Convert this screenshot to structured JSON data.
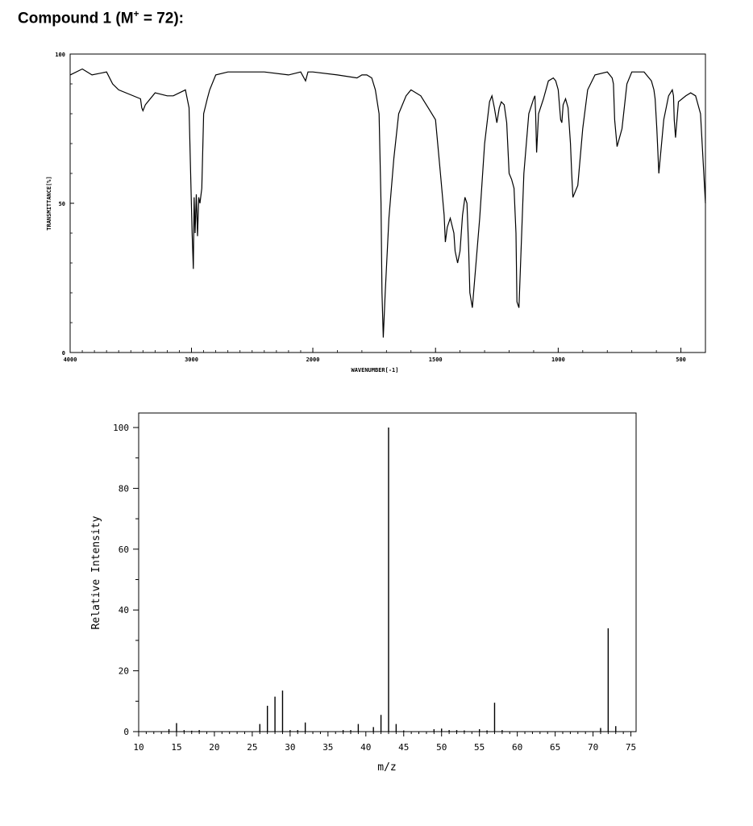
{
  "title": {
    "main": "Compound 1 (M",
    "sup": "+",
    "rest": " = 72):"
  },
  "chart_data": [
    {
      "type": "line",
      "title": "",
      "xlabel": "WAVENUMBER[-1]",
      "ylabel": "TRANSMITTANCE[%]",
      "xlim": [
        4000,
        400
      ],
      "ylim": [
        0,
        100
      ],
      "x_ticks": [
        4000,
        3000,
        2000,
        1500,
        1000,
        500
      ],
      "y_ticks": [
        0,
        50,
        100
      ],
      "grid": false,
      "series": [
        {
          "x": [
            4000,
            3900,
            3820,
            3700,
            3650,
            3600,
            3420,
            3410,
            3400,
            3380,
            3300,
            3200,
            3150,
            3050,
            3020,
            3010,
            2995,
            2985,
            2978,
            2970,
            2960,
            2950,
            2940,
            2930,
            2915,
            2900,
            2870,
            2850,
            2800,
            2700,
            2600,
            2400,
            2200,
            2100,
            2060,
            2040,
            2000,
            1900,
            1820,
            1800,
            1780,
            1760,
            1745,
            1730,
            1722,
            1718,
            1713,
            1705,
            1690,
            1670,
            1650,
            1620,
            1600,
            1560,
            1530,
            1500,
            1480,
            1465,
            1460,
            1452,
            1440,
            1425,
            1420,
            1410,
            1400,
            1390,
            1380,
            1372,
            1365,
            1360,
            1350,
            1320,
            1300,
            1280,
            1270,
            1260,
            1250,
            1240,
            1232,
            1220,
            1210,
            1200,
            1190,
            1180,
            1172,
            1168,
            1160,
            1140,
            1120,
            1100,
            1095,
            1092,
            1088,
            1080,
            1060,
            1040,
            1020,
            1010,
            1000,
            992,
            990,
            985,
            980,
            970,
            960,
            950,
            945,
            940,
            920,
            900,
            880,
            850,
            800,
            780,
            775,
            770,
            760,
            740,
            720,
            700,
            650,
            620,
            610,
            605,
            598,
            590,
            570,
            550,
            535,
            530,
            527,
            522,
            510,
            480,
            460,
            440,
            420,
            400
          ],
          "y": [
            93,
            95,
            93,
            94,
            90,
            88,
            85,
            82,
            81,
            83,
            87,
            86,
            86,
            88,
            82,
            65,
            40,
            28,
            52,
            40,
            53,
            39,
            52,
            50,
            55,
            80,
            85,
            88,
            93,
            94,
            94,
            94,
            93,
            94,
            91,
            94,
            94,
            93,
            92,
            93,
            93,
            92,
            88,
            80,
            50,
            20,
            5,
            20,
            45,
            65,
            80,
            86,
            88,
            86,
            82,
            78,
            60,
            46,
            37,
            42,
            45,
            40,
            34,
            30,
            34,
            46,
            52,
            50,
            35,
            20,
            15,
            45,
            70,
            84,
            86,
            82,
            77,
            82,
            84,
            83,
            77,
            60,
            58,
            55,
            40,
            17,
            15,
            60,
            80,
            85,
            86,
            80,
            67,
            80,
            85,
            91,
            92,
            91,
            88,
            80,
            78,
            77,
            83,
            85,
            82,
            70,
            60,
            52,
            56,
            75,
            88,
            93,
            94,
            92,
            90,
            78,
            69,
            75,
            90,
            94,
            94,
            91,
            88,
            85,
            75,
            60,
            78,
            86,
            88,
            86,
            78,
            72,
            84,
            86,
            87,
            86,
            80,
            50
          ]
        }
      ]
    },
    {
      "type": "bar",
      "title": "",
      "xlabel": "m/z",
      "ylabel": "Relative Intensity",
      "xlim": [
        10,
        76
      ],
      "ylim": [
        0,
        105
      ],
      "x_ticks": [
        10,
        15,
        20,
        25,
        30,
        35,
        40,
        45,
        50,
        55,
        60,
        65,
        70,
        75
      ],
      "y_ticks": [
        0,
        20,
        40,
        60,
        80,
        100
      ],
      "grid": false,
      "x": [
        14,
        15,
        16,
        17,
        18,
        26,
        27,
        28,
        29,
        30,
        31,
        32,
        37,
        38,
        39,
        41,
        42,
        43,
        44,
        45,
        49,
        50,
        51,
        52,
        53,
        55,
        56,
        57,
        58,
        71,
        72,
        73
      ],
      "values": [
        0.8,
        2.8,
        0.5,
        0.3,
        0.5,
        2.5,
        8.5,
        11.5,
        13.5,
        0.5,
        0.5,
        3.0,
        0.5,
        0.5,
        2.5,
        1.5,
        5.5,
        100,
        2.5,
        0.4,
        0.8,
        1.0,
        0.5,
        0.5,
        0.4,
        0.8,
        0.4,
        9.5,
        0.5,
        1.2,
        34,
        1.8
      ]
    }
  ]
}
